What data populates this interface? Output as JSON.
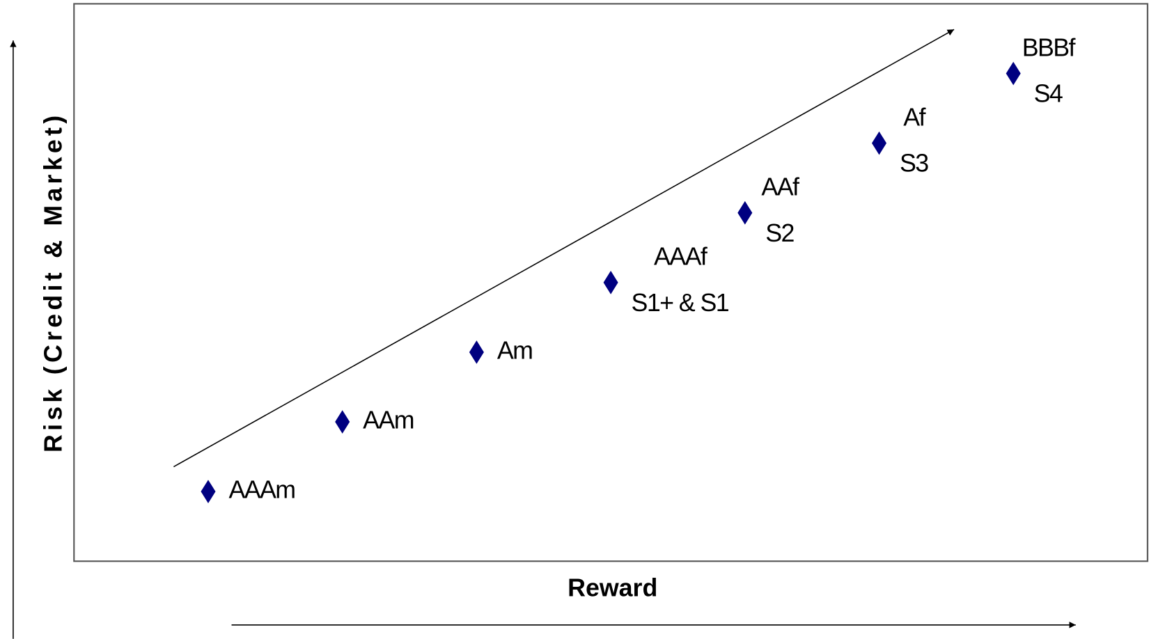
{
  "chart_data": {
    "type": "scatter",
    "x_label": "Reward",
    "y_label": "Risk (Credit & Market)",
    "x": [
      1,
      2,
      3,
      4,
      5,
      6,
      7
    ],
    "values": [
      1,
      2,
      3,
      4,
      5,
      6,
      7
    ],
    "labels": [
      [
        "AAAm"
      ],
      [
        "AAm"
      ],
      [
        "Am"
      ],
      [
        "AAAf",
        "S1+ & S1"
      ],
      [
        "AAf",
        "S2"
      ],
      [
        "Af",
        "S3"
      ],
      [
        "BBBf",
        "S4"
      ]
    ],
    "color": "#000080",
    "xlim": [
      0,
      8
    ],
    "ylim": [
      0,
      8
    ],
    "grid": false
  }
}
